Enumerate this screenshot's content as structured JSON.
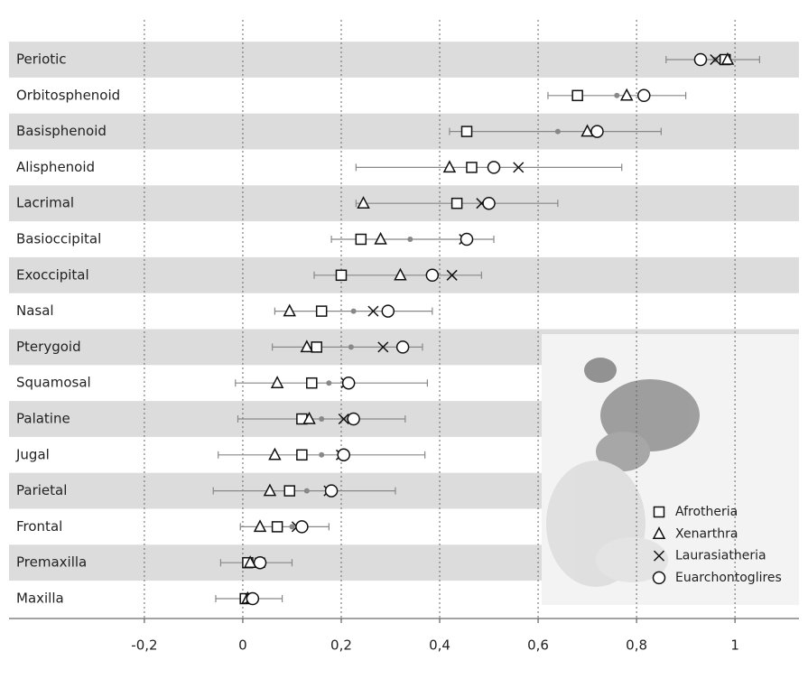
{
  "chart_data": {
    "type": "dot",
    "categories": [
      "Periotic",
      "Orbitosphenoid",
      "Basisphenoid",
      "Alisphenoid",
      "Lacrimal",
      "Basioccipital",
      "Exoccipital",
      "Nasal",
      "Pterygoid",
      "Squamosal",
      "Palatine",
      "Jugal",
      "Parietal",
      "Frontal",
      "Premaxilla",
      "Maxilla"
    ],
    "series": [
      {
        "name": "Afrotheria",
        "marker": "square",
        "color": "#111111",
        "values": [
          0.98,
          0.68,
          0.455,
          0.465,
          0.435,
          0.24,
          0.2,
          0.16,
          0.15,
          0.14,
          0.12,
          0.12,
          0.095,
          0.07,
          0.01,
          0.005
        ]
      },
      {
        "name": "Xenarthra",
        "marker": "triangle",
        "color": "#111111",
        "values": [
          0.985,
          0.78,
          0.7,
          0.42,
          0.245,
          0.28,
          0.32,
          0.095,
          0.13,
          0.07,
          0.135,
          0.065,
          0.055,
          0.035,
          0.015,
          0.01
        ]
      },
      {
        "name": "Laurasiatheria",
        "marker": "cross",
        "color": "#111111",
        "values": [
          0.96,
          null,
          null,
          0.56,
          0.485,
          0.45,
          0.425,
          0.265,
          0.285,
          0.21,
          0.205,
          0.2,
          0.175,
          0.11,
          0.035,
          0.015
        ]
      },
      {
        "name": "Euarchontoglires",
        "marker": "circle",
        "color": "#111111",
        "values": [
          0.93,
          0.815,
          0.72,
          0.51,
          0.5,
          0.455,
          0.385,
          0.295,
          0.325,
          0.215,
          0.225,
          0.205,
          0.18,
          0.12,
          0.035,
          0.02
        ]
      }
    ],
    "mean": [
      0.96,
      0.76,
      0.64,
      null,
      null,
      0.34,
      null,
      0.225,
      0.22,
      0.175,
      0.16,
      0.16,
      0.13,
      0.1,
      0.03,
      0.015
    ],
    "low": [
      0.86,
      0.62,
      0.42,
      0.23,
      0.23,
      0.18,
      0.145,
      0.065,
      0.06,
      -0.015,
      -0.01,
      -0.05,
      -0.06,
      -0.005,
      -0.045,
      -0.055
    ],
    "high": [
      1.05,
      0.9,
      0.85,
      0.77,
      0.64,
      0.51,
      0.485,
      0.385,
      0.365,
      0.375,
      0.33,
      0.37,
      0.31,
      0.175,
      0.1,
      0.08
    ],
    "xlim": [
      -0.475,
      1.13
    ],
    "xticks": [
      {
        "value": -0.2,
        "label": "-0,2"
      },
      0,
      {
        "value": 0.2,
        "label": "0,2"
      },
      {
        "value": 0.4,
        "label": "0,4"
      },
      {
        "value": 0.6,
        "label": "0,6"
      },
      {
        "value": 0.8,
        "label": "0,8"
      },
      1
    ],
    "grid": true
  }
}
